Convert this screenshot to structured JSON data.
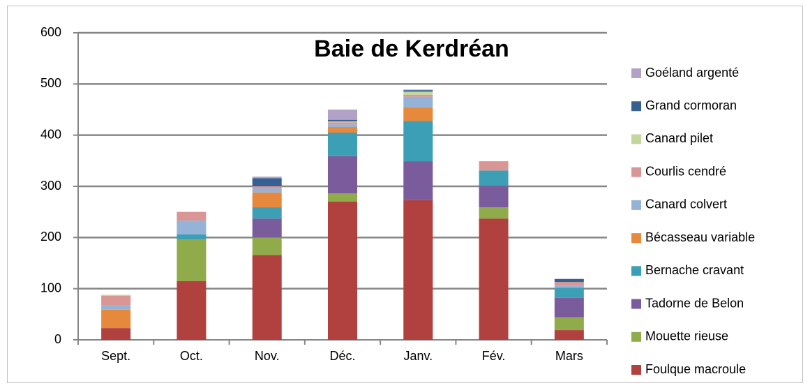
{
  "chart_data": {
    "type": "stacked_bar",
    "title": "Baie de Kerdréan",
    "categories": [
      "Sept.",
      "Oct.",
      "Nov.",
      "Déc.",
      "Janv.",
      "Fév.",
      "Mars"
    ],
    "series": [
      {
        "name": "Foulque macroule",
        "color": "#b0413e",
        "values": [
          23,
          115,
          166,
          270,
          273,
          237,
          19
        ]
      },
      {
        "name": "Mouette rieuse",
        "color": "#8fab4a",
        "values": [
          0,
          81,
          34,
          16,
          0,
          22,
          25
        ]
      },
      {
        "name": "Tadorne de Belon",
        "color": "#7a5c9c",
        "values": [
          0,
          0,
          37,
          73,
          76,
          42,
          38
        ]
      },
      {
        "name": "Bernache cravant",
        "color": "#3d9fb5",
        "values": [
          0,
          10,
          22,
          46,
          79,
          30,
          20
        ]
      },
      {
        "name": "Bécasseau variable",
        "color": "#e7893d",
        "values": [
          36,
          0,
          29,
          11,
          26,
          0,
          0
        ]
      },
      {
        "name": "Canard colvert",
        "color": "#95b3d7",
        "values": [
          9,
          27,
          8,
          5,
          21,
          0,
          4
        ]
      },
      {
        "name": "Courlis cendré",
        "color": "#d99694",
        "values": [
          18,
          17,
          4,
          4,
          4,
          18,
          7
        ]
      },
      {
        "name": "Canard pilet",
        "color": "#c3d69b",
        "values": [
          2,
          0,
          0,
          2,
          6,
          0,
          0
        ]
      },
      {
        "name": "Grand cormoran",
        "color": "#366092",
        "values": [
          0,
          0,
          16,
          3,
          3,
          0,
          6
        ]
      },
      {
        "name": "Goéland argenté",
        "color": "#b3a2c7",
        "values": [
          0,
          0,
          3,
          20,
          1,
          0,
          0
        ]
      }
    ],
    "ylim": [
      0,
      600
    ],
    "yticks": [
      0,
      100,
      200,
      300,
      400,
      500,
      600
    ],
    "grid": true,
    "legend": "right"
  }
}
